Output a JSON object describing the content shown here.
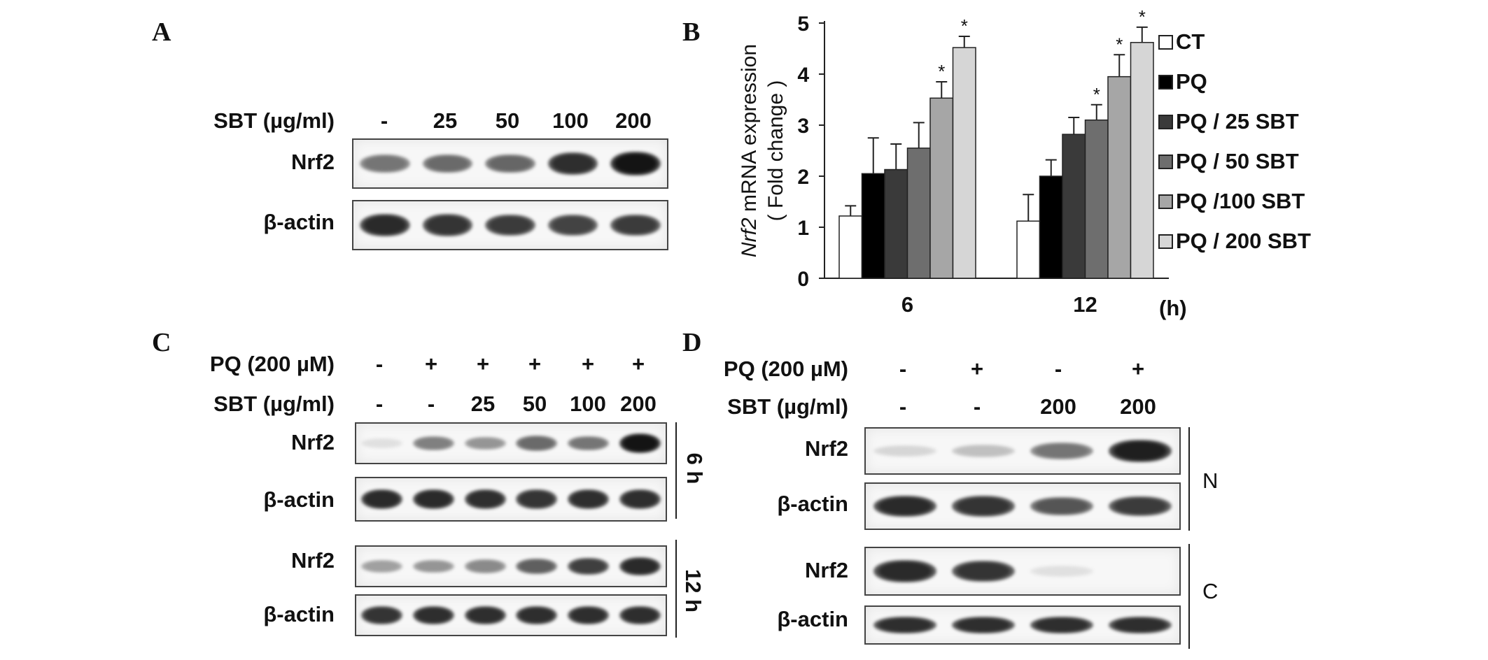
{
  "panels": {
    "a": {
      "label": "A",
      "sbt_label": "SBT (µg/ml)",
      "sbt_values": [
        "-",
        "25",
        "50",
        "100",
        "200"
      ],
      "rows": [
        {
          "label": "Nrf2",
          "intensity": [
            0.55,
            0.6,
            0.62,
            0.88,
            1.0
          ]
        },
        {
          "label": "β-actin",
          "intensity": [
            0.9,
            0.85,
            0.82,
            0.78,
            0.82
          ]
        }
      ]
    },
    "b": {
      "label": "B",
      "unit": "(h)"
    },
    "c": {
      "label": "C",
      "pq_label": "PQ (200 µM)",
      "pq_values": [
        "-",
        "+",
        "+",
        "+",
        "+",
        "+"
      ],
      "sbt_label": "SBT (µg/ml)",
      "sbt_values": [
        "-",
        "-",
        "25",
        "50",
        "100",
        "200"
      ],
      "groups": [
        {
          "time": "6 h",
          "rows": [
            {
              "label": "Nrf2",
              "intensity": [
                0.05,
                0.5,
                0.4,
                0.6,
                0.55,
                1.0
              ]
            },
            {
              "label": "β-actin",
              "intensity": [
                0.9,
                0.9,
                0.88,
                0.85,
                0.88,
                0.88
              ]
            }
          ]
        },
        {
          "time": "12 h",
          "rows": [
            {
              "label": "Nrf2",
              "intensity": [
                0.35,
                0.4,
                0.45,
                0.65,
                0.8,
                0.9
              ]
            },
            {
              "label": "β-actin",
              "intensity": [
                0.85,
                0.88,
                0.88,
                0.88,
                0.88,
                0.88
              ]
            }
          ]
        }
      ]
    },
    "d": {
      "label": "D",
      "pq_label": "PQ (200 µM)",
      "pq_values": [
        "-",
        "+",
        "-",
        "+"
      ],
      "sbt_label": "SBT (µg/ml)",
      "sbt_values": [
        "-",
        "-",
        "200",
        "200"
      ],
      "groups": [
        {
          "fraction": "N",
          "rows": [
            {
              "label": "Nrf2",
              "intensity": [
                0.1,
                0.2,
                0.55,
                0.95
              ]
            },
            {
              "label": "β-actin",
              "intensity": [
                0.9,
                0.85,
                0.7,
                0.82
              ]
            }
          ]
        },
        {
          "fraction": "C",
          "rows": [
            {
              "label": "Nrf2",
              "intensity": [
                0.9,
                0.85,
                0.05,
                0.0
              ]
            },
            {
              "label": "β-actin",
              "intensity": [
                0.88,
                0.88,
                0.88,
                0.88
              ]
            }
          ]
        }
      ]
    }
  },
  "chart_data": {
    "type": "bar",
    "ylabel_italic": "Nrf2",
    "ylabel_rest": " mRNA expression",
    "ylabel_line2": "( Fold change )",
    "ylim": [
      0,
      5
    ],
    "yticks": [
      "0",
      "1",
      "2",
      "3",
      "4",
      "5"
    ],
    "categories": [
      "6",
      "12"
    ],
    "series": [
      {
        "name": "CT",
        "color": "#ffffff",
        "values": [
          1.22,
          1.12
        ],
        "errors": [
          0.2,
          0.52
        ],
        "star": [
          false,
          false
        ]
      },
      {
        "name": "PQ",
        "color": "#000000",
        "values": [
          2.05,
          2.0
        ],
        "errors": [
          0.7,
          0.32
        ],
        "star": [
          false,
          false
        ]
      },
      {
        "name": "PQ / 25 SBT",
        "color": "#3a3a3a",
        "values": [
          2.13,
          2.82
        ],
        "errors": [
          0.5,
          0.33
        ],
        "star": [
          false,
          false
        ]
      },
      {
        "name": "PQ / 50 SBT",
        "color": "#6e6e6e",
        "values": [
          2.55,
          3.1
        ],
        "errors": [
          0.5,
          0.3
        ],
        "star": [
          false,
          true
        ]
      },
      {
        "name": "PQ /100 SBT",
        "color": "#a6a6a6",
        "values": [
          3.53,
          3.95
        ],
        "errors": [
          0.32,
          0.43
        ],
        "star": [
          true,
          true
        ]
      },
      {
        "name": "PQ / 200 SBT",
        "color": "#d6d6d6",
        "values": [
          4.52,
          4.62
        ],
        "errors": [
          0.22,
          0.3
        ],
        "star": [
          true,
          true
        ]
      }
    ],
    "star_symbol": "*",
    "grid": false,
    "legend_position": "right"
  }
}
